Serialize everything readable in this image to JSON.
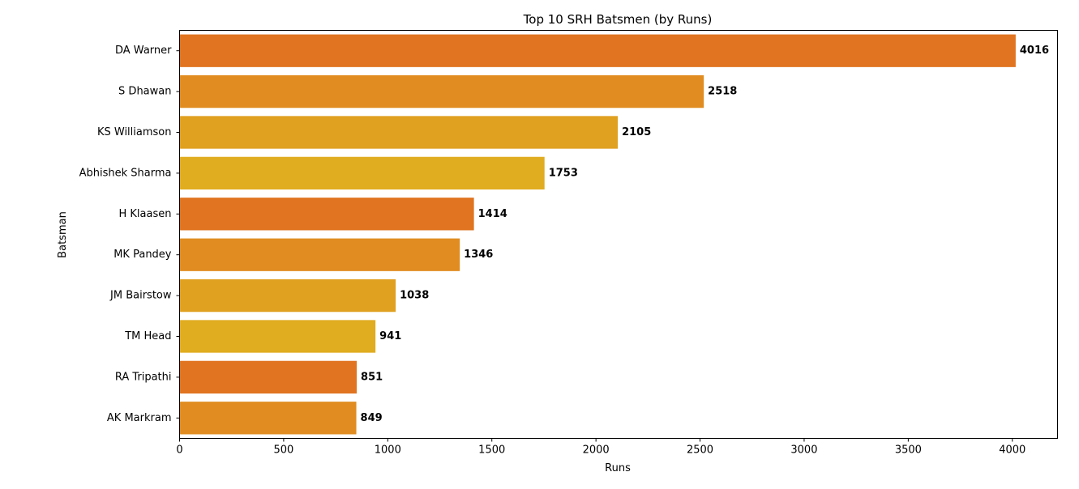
{
  "chart_data": {
    "type": "bar",
    "orientation": "horizontal",
    "title": "Top 10 SRH Batsmen (by Runs)",
    "xlabel": "Runs",
    "ylabel": "Batsman",
    "categories": [
      "DA Warner",
      "S Dhawan",
      "KS Williamson",
      "Abhishek Sharma",
      "H Klaasen",
      "MK Pandey",
      "JM Bairstow",
      "TM Head",
      "RA Tripathi",
      "AK Markram"
    ],
    "values": [
      4016,
      2518,
      2105,
      1753,
      1414,
      1346,
      1038,
      941,
      851,
      849
    ],
    "bar_colors": [
      "#e07420",
      "#e08c20",
      "#e0a020",
      "#e0ac20",
      "#e07420",
      "#e08c20",
      "#e0a020",
      "#e0ac20",
      "#e07420",
      "#e08c20"
    ],
    "xlim": [
      0,
      4217
    ],
    "xticks": [
      0,
      500,
      1000,
      1500,
      2000,
      2500,
      3000,
      3500,
      4000
    ],
    "grid": false,
    "data_labels": true
  }
}
